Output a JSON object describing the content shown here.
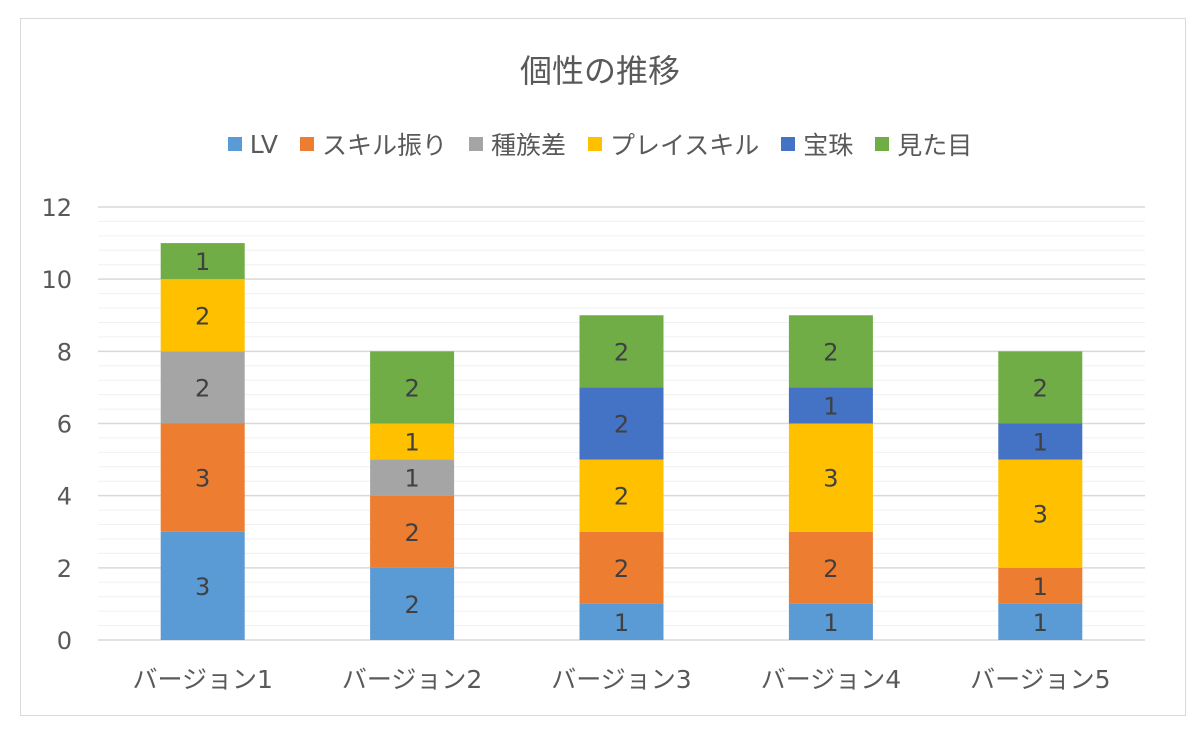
{
  "chart_data": {
    "type": "bar",
    "stacked": true,
    "title": "個性の推移",
    "categories": [
      "バージョン1",
      "バージョン2",
      "バージョン3",
      "バージョン4",
      "バージョン5"
    ],
    "series": [
      {
        "name": "LV",
        "color": "#5b9bd5",
        "values": [
          3,
          2,
          1,
          1,
          1
        ]
      },
      {
        "name": "スキル振り",
        "color": "#ed7d31",
        "values": [
          3,
          2,
          2,
          2,
          1
        ]
      },
      {
        "name": "種族差",
        "color": "#a5a5a5",
        "values": [
          2,
          1,
          0,
          0,
          0
        ]
      },
      {
        "name": "プレイスキル",
        "color": "#ffc000",
        "values": [
          2,
          1,
          2,
          3,
          3
        ]
      },
      {
        "name": "宝珠",
        "color": "#4472c4",
        "values": [
          0,
          0,
          2,
          1,
          1
        ]
      },
      {
        "name": "見た目",
        "color": "#70ad47",
        "values": [
          1,
          2,
          2,
          2,
          2
        ]
      }
    ],
    "ylim": [
      0,
      12
    ],
    "yticks": [
      "0",
      "2",
      "4",
      "6",
      "8",
      "10",
      "12"
    ],
    "grid": true,
    "data_labels": true,
    "legend_position": "top",
    "xlabel": "",
    "ylabel": ""
  }
}
